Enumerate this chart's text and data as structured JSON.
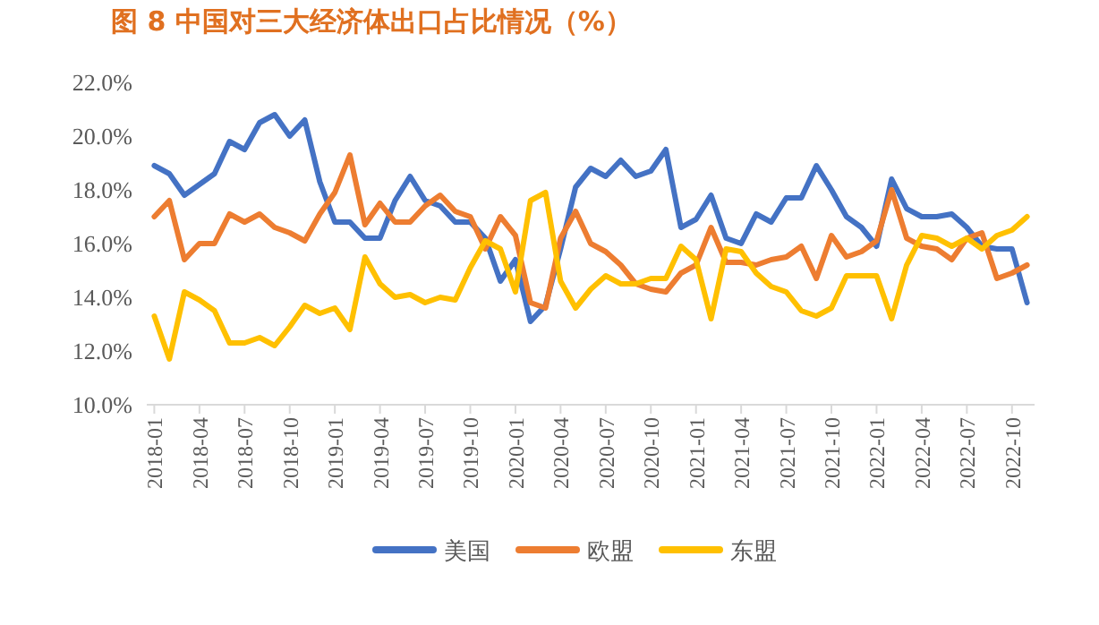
{
  "chart_data": {
    "type": "line",
    "title": "图 8 中国对三大经济体出口占比情况（%）",
    "categories": [
      "2018-01",
      null,
      null,
      "2018-04",
      null,
      null,
      "2018-07",
      null,
      null,
      "2018-10",
      null,
      null,
      "2019-01",
      null,
      null,
      "2019-04",
      null,
      null,
      "2019-07",
      null,
      null,
      "2019-10",
      null,
      null,
      "2020-01",
      null,
      null,
      "2020-04",
      null,
      null,
      "2020-07",
      null,
      null,
      "2020-10",
      null,
      null,
      "2021-01",
      null,
      null,
      "2021-04",
      null,
      null,
      "2021-07",
      null,
      null,
      "2021-10",
      null,
      null,
      "2022-01",
      null,
      null,
      "2022-04",
      null,
      null,
      "2022-07",
      null,
      null,
      "2022-10",
      null
    ],
    "series": [
      {
        "name": "美国",
        "color": "#4472c4",
        "values": [
          18.9,
          18.6,
          17.8,
          18.2,
          18.6,
          19.8,
          19.5,
          20.5,
          20.8,
          20.0,
          20.6,
          18.3,
          16.8,
          16.8,
          16.2,
          16.2,
          17.6,
          18.5,
          17.6,
          17.4,
          16.8,
          16.8,
          16.2,
          14.6,
          15.4,
          13.1,
          13.7,
          15.8,
          18.1,
          18.8,
          18.5,
          19.1,
          18.5,
          18.7,
          19.5,
          16.6,
          16.9,
          17.8,
          16.2,
          16.0,
          17.1,
          16.8,
          17.7,
          17.7,
          18.9,
          18.0,
          17.0,
          16.6,
          15.9,
          18.4,
          17.3,
          17.0,
          17.0,
          17.1,
          16.6,
          15.9,
          15.8,
          15.8,
          13.8
        ]
      },
      {
        "name": "欧盟",
        "color": "#ed7d31",
        "values": [
          17.0,
          17.6,
          15.4,
          16.0,
          16.0,
          17.1,
          16.8,
          17.1,
          16.6,
          16.4,
          16.1,
          17.1,
          17.9,
          19.3,
          16.7,
          17.5,
          16.8,
          16.8,
          17.4,
          17.8,
          17.2,
          17.0,
          15.8,
          17.0,
          16.3,
          13.8,
          13.6,
          16.2,
          17.2,
          16.0,
          15.7,
          15.2,
          14.5,
          14.3,
          14.2,
          14.9,
          15.2,
          16.6,
          15.3,
          15.3,
          15.2,
          15.4,
          15.5,
          15.9,
          14.7,
          16.3,
          15.5,
          15.7,
          16.1,
          18.0,
          16.2,
          15.9,
          15.8,
          15.4,
          16.2,
          16.4,
          14.7,
          14.9,
          15.2
        ]
      },
      {
        "name": "东盟",
        "color": "#ffc000",
        "values": [
          13.3,
          11.7,
          14.2,
          13.9,
          13.5,
          12.3,
          12.3,
          12.5,
          12.2,
          12.9,
          13.7,
          13.4,
          13.6,
          12.8,
          15.5,
          14.5,
          14.0,
          14.1,
          13.8,
          14.0,
          13.9,
          15.1,
          16.1,
          15.8,
          14.2,
          17.6,
          17.9,
          14.6,
          13.6,
          14.3,
          14.8,
          14.5,
          14.5,
          14.7,
          14.7,
          15.9,
          15.4,
          13.2,
          15.8,
          15.7,
          14.9,
          14.4,
          14.2,
          13.5,
          13.3,
          13.6,
          14.8,
          14.8,
          14.8,
          13.2,
          15.2,
          16.3,
          16.2,
          15.9,
          16.2,
          15.8,
          16.3,
          16.5,
          17.0
        ]
      }
    ],
    "ylim": [
      10,
      22
    ],
    "yticks": [
      {
        "value": 10,
        "label": "10.0%"
      },
      {
        "value": 12,
        "label": "12.0%"
      },
      {
        "value": 14,
        "label": "14.0%"
      },
      {
        "value": 16,
        "label": "16.0%"
      },
      {
        "value": 18,
        "label": "18.0%"
      },
      {
        "value": 20,
        "label": "20.0%"
      },
      {
        "value": 22,
        "label": "22.0%"
      }
    ],
    "legend": "bottom",
    "marker": "none",
    "line_style": "solid"
  }
}
